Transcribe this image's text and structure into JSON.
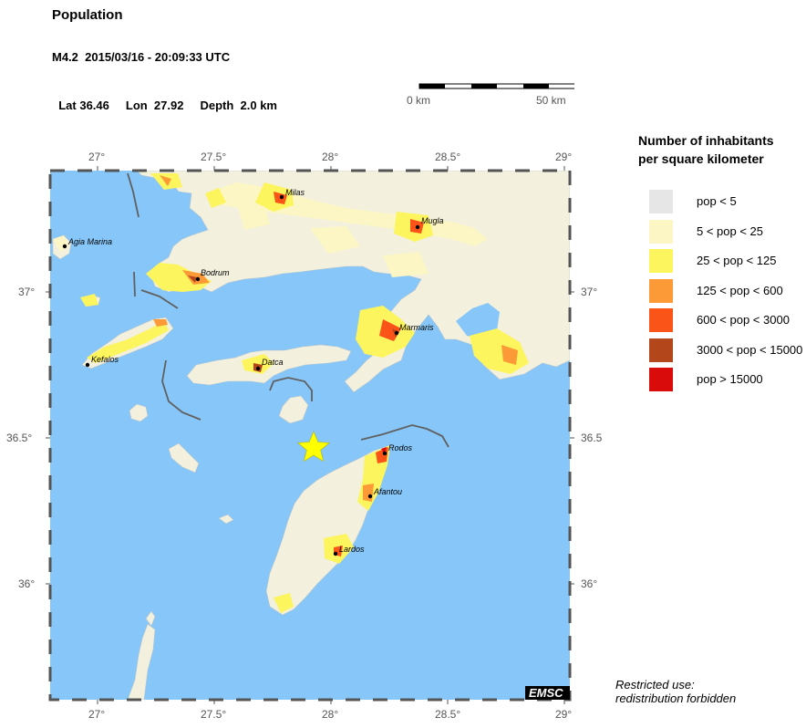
{
  "header": {
    "title": "Population",
    "event_line": "M4.2  2015/03/16 - 20:09:33 UTC",
    "lat_label": "Lat 36.46",
    "lon_label": "Lon  27.92",
    "depth_label": "Depth  2.0 km"
  },
  "scale_bar": {
    "start_label": "0 km",
    "end_label": "50 km"
  },
  "axes": {
    "lon_ticks": [
      "27°",
      "27.5°",
      "28°",
      "28.5°",
      "29°"
    ],
    "lat_ticks": [
      "37°",
      "36.5°",
      "36°"
    ]
  },
  "epicenter": {
    "lat": 36.46,
    "lon": 27.92,
    "symbol": "star-icon",
    "color": "#ffff00"
  },
  "cities": [
    {
      "name": "Milas",
      "lon": 27.78,
      "lat": 37.32
    },
    {
      "name": "Mugla",
      "lon": 28.37,
      "lat": 37.21
    },
    {
      "name": "Agia Marina",
      "lon": 26.87,
      "lat": 37.15
    },
    {
      "name": "Bodrum",
      "lon": 27.43,
      "lat": 37.04
    },
    {
      "name": "Marmaris",
      "lon": 28.27,
      "lat": 36.86
    },
    {
      "name": "Kefalos",
      "lon": 26.96,
      "lat": 36.74
    },
    {
      "name": "Datca",
      "lon": 27.69,
      "lat": 36.74
    },
    {
      "name": "Rodos",
      "lon": 28.22,
      "lat": 36.44
    },
    {
      "name": "Afantou",
      "lon": 28.17,
      "lat": 36.29
    },
    {
      "name": "Lardos",
      "lon": 28.01,
      "lat": 36.1
    }
  ],
  "legend": {
    "title_line1": "Number of inhabitants",
    "title_line2": "per square kilometer",
    "items": [
      {
        "label": "pop < 5",
        "color": "#e6e6e6"
      },
      {
        "label": "5 < pop < 25",
        "color": "#fbf6c4"
      },
      {
        "label": "25 < pop < 125",
        "color": "#fcf55e"
      },
      {
        "label": "125 < pop < 600",
        "color": "#fb9a36"
      },
      {
        "label": "600 < pop < 3000",
        "color": "#fb5419"
      },
      {
        "label": "3000 < pop < 15000",
        "color": "#b3461a"
      },
      {
        "label": "pop > 15000",
        "color": "#d90b0b"
      }
    ]
  },
  "colors": {
    "sea": "#87c6f8",
    "land": "#f3f1de",
    "fault": "#606060"
  },
  "logo": "EMSC",
  "footer": {
    "line1": "Restricted use:",
    "line2": "redistribution forbidden"
  }
}
